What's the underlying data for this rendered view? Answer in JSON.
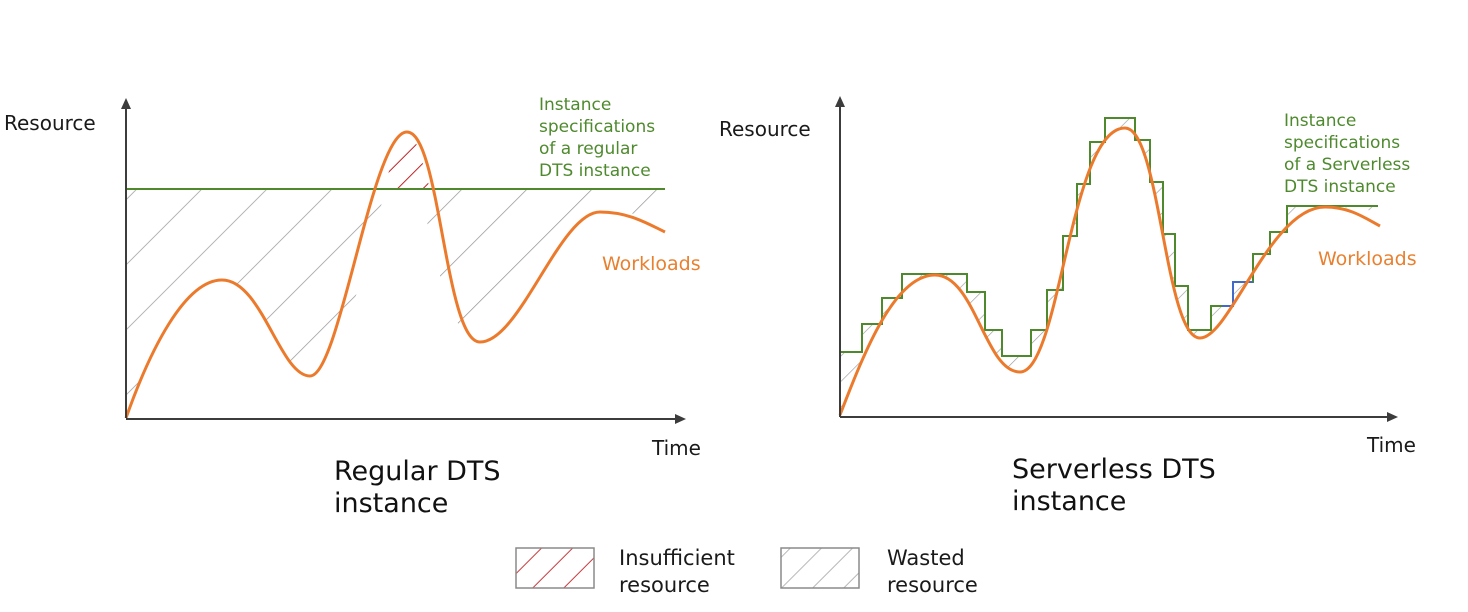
{
  "colors": {
    "axis": "#3c3c3c",
    "workload": "#ec7a2c",
    "spec": "#4e8a2d",
    "wasted_hatch": "#9a9a9a",
    "insufficient_hatch": "#c0282a",
    "blue_step": "#4169c8"
  },
  "left_chart": {
    "y_label": "Resource",
    "x_label": "Time",
    "spec_label": [
      "Instance",
      "specifications",
      "of a regular",
      "DTS instance"
    ],
    "workload_label": "Workloads",
    "caption": [
      "Regular DTS",
      "instance"
    ]
  },
  "right_chart": {
    "y_label": "Resource",
    "x_label": "Time",
    "spec_label": [
      "Instance",
      "specifications",
      "of a Serverless",
      "DTS instance"
    ],
    "workload_label": "Workloads",
    "caption": [
      "Serverless DTS",
      "instance"
    ]
  },
  "legend": {
    "insufficient": [
      "Insufficient",
      "resource"
    ],
    "wasted": [
      "Wasted",
      "resource"
    ]
  }
}
